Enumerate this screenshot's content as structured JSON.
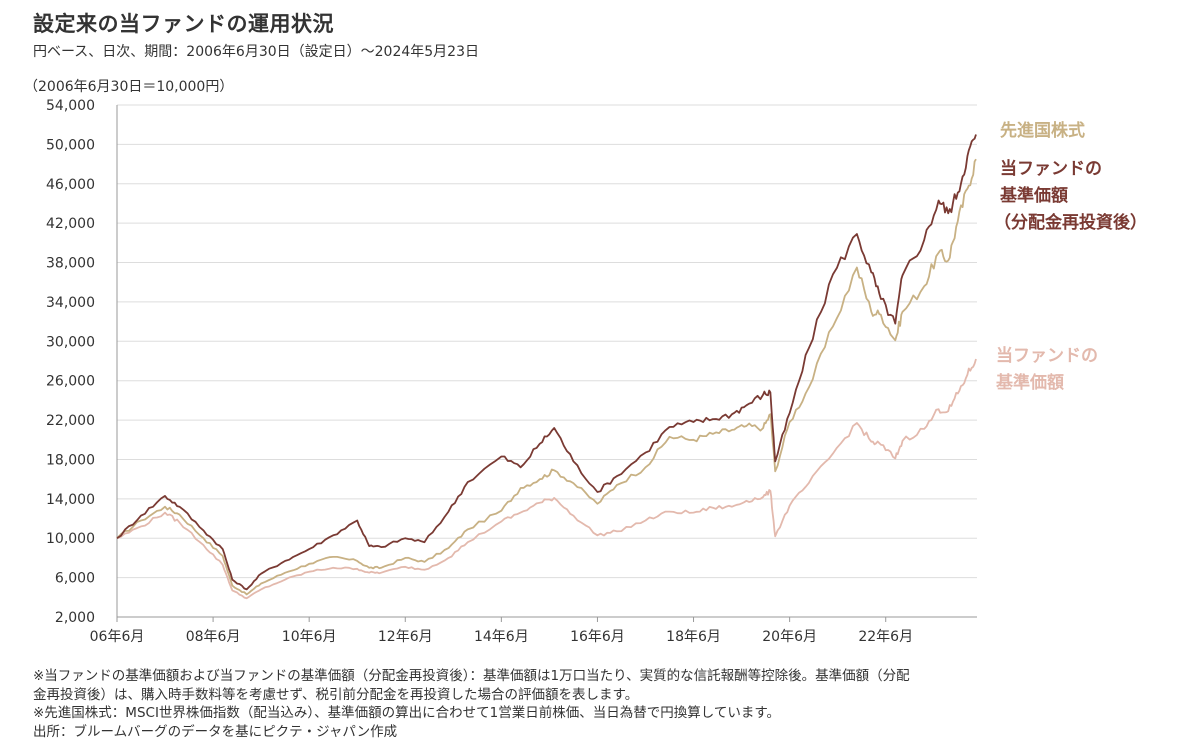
{
  "header": {
    "title": "設定来の当ファンドの運用状況",
    "subtitle": "円ベース、日次、期間：2006年6月30日（設定日）～2024年5月23日",
    "unit_label": "（2006年6月30日＝10,000円）"
  },
  "chart_data": {
    "type": "line",
    "title": "設定来の当ファンドの運用状況",
    "ylim": [
      2000,
      54000
    ],
    "xlim": [
      2006.5,
      2024.4
    ],
    "y_ticks": [
      2000,
      6000,
      10000,
      14000,
      18000,
      22000,
      26000,
      30000,
      34000,
      38000,
      42000,
      46000,
      50000,
      54000
    ],
    "y_tick_labels": [
      "2,000",
      "6,000",
      "10,000",
      "14,000",
      "18,000",
      "22,000",
      "26,000",
      "30,000",
      "34,000",
      "38,000",
      "42,000",
      "46,000",
      "50,000",
      "54,000"
    ],
    "x_ticks": [
      2006.5,
      2008.5,
      2010.5,
      2012.5,
      2014.5,
      2016.5,
      2018.5,
      2020.5,
      2022.5
    ],
    "x_tick_labels": [
      "06年6月",
      "08年6月",
      "10年6月",
      "12年6月",
      "14年6月",
      "16年6月",
      "18年6月",
      "20年6月",
      "22年6月"
    ],
    "grid": "horizontal",
    "legend": "right",
    "series": [
      {
        "name": "先進国株式",
        "color": "#c8b184",
        "x": [
          2006.5,
          2007.0,
          2007.5,
          2007.8,
          2008.3,
          2008.7,
          2008.9,
          2009.2,
          2009.5,
          2010.0,
          2010.5,
          2011.0,
          2011.5,
          2011.75,
          2012.0,
          2012.5,
          2012.9,
          2013.4,
          2013.8,
          2014.5,
          2014.9,
          2015.3,
          2015.6,
          2016.0,
          2016.5,
          2016.9,
          2017.5,
          2018.0,
          2018.5,
          2018.9,
          2019.3,
          2019.6,
          2019.95,
          2020.1,
          2020.2,
          2020.5,
          2020.9,
          2021.4,
          2021.9,
          2022.2,
          2022.4,
          2022.7,
          2022.85,
          2023.3,
          2023.6,
          2023.8,
          2024.0,
          2024.2,
          2024.38
        ],
        "y": [
          10000,
          11800,
          13200,
          12400,
          10000,
          8200,
          5200,
          4300,
          5400,
          6500,
          7400,
          8100,
          7700,
          7000,
          7000,
          8000,
          7600,
          9000,
          10900,
          12800,
          15100,
          16000,
          16900,
          15600,
          13500,
          15400,
          17200,
          20300,
          20000,
          20600,
          21000,
          21400,
          21200,
          22600,
          16800,
          21800,
          25300,
          31500,
          37500,
          33000,
          32700,
          30100,
          33000,
          35600,
          39000,
          38200,
          42200,
          45500,
          48500
        ]
      },
      {
        "name": "当ファンドの基準価額（分配金再投資後）",
        "color": "#7a3a33",
        "x": [
          2006.5,
          2007.0,
          2007.5,
          2007.8,
          2008.3,
          2008.7,
          2008.9,
          2009.2,
          2009.5,
          2010.0,
          2010.5,
          2011.0,
          2011.5,
          2011.75,
          2012.0,
          2012.5,
          2012.9,
          2013.4,
          2013.8,
          2014.5,
          2014.9,
          2015.3,
          2015.6,
          2016.0,
          2016.5,
          2016.9,
          2017.5,
          2018.0,
          2018.5,
          2018.9,
          2019.3,
          2019.6,
          2019.95,
          2020.1,
          2020.2,
          2020.5,
          2020.9,
          2021.4,
          2021.9,
          2022.2,
          2022.4,
          2022.7,
          2022.85,
          2023.3,
          2023.6,
          2023.8,
          2024.0,
          2024.2,
          2024.38
        ],
        "y": [
          10000,
          12300,
          14300,
          13200,
          10800,
          8900,
          5800,
          4800,
          6400,
          7700,
          8900,
          10300,
          11800,
          9200,
          9100,
          10000,
          9600,
          12700,
          15700,
          18300,
          17200,
          19600,
          21200,
          17800,
          14700,
          16300,
          18700,
          21300,
          21800,
          22100,
          22600,
          23500,
          24600,
          24800,
          17800,
          22700,
          29300,
          36800,
          40900,
          37000,
          34300,
          31800,
          36700,
          40300,
          44300,
          43000,
          45100,
          48800,
          51000
        ]
      },
      {
        "name": "当ファンドの基準価額",
        "color": "#e3b9ad",
        "x": [
          2006.5,
          2007.0,
          2007.5,
          2007.8,
          2008.3,
          2008.7,
          2008.9,
          2009.2,
          2009.5,
          2010.0,
          2010.5,
          2011.0,
          2011.5,
          2011.75,
          2012.0,
          2012.5,
          2012.9,
          2013.4,
          2013.8,
          2014.5,
          2014.9,
          2015.3,
          2015.6,
          2016.0,
          2016.5,
          2016.9,
          2017.5,
          2018.0,
          2018.5,
          2018.9,
          2019.3,
          2019.6,
          2019.95,
          2020.1,
          2020.2,
          2020.5,
          2020.9,
          2021.4,
          2021.9,
          2022.2,
          2022.4,
          2022.7,
          2022.85,
          2023.3,
          2023.6,
          2023.8,
          2024.0,
          2024.2,
          2024.38
        ],
        "y": [
          10000,
          11200,
          12600,
          11600,
          9300,
          7300,
          4700,
          3900,
          4800,
          5800,
          6600,
          7000,
          6900,
          6500,
          6500,
          7100,
          6800,
          8000,
          9600,
          11700,
          12600,
          13600,
          14100,
          12300,
          10300,
          10700,
          11800,
          12700,
          12600,
          13100,
          13200,
          13800,
          14200,
          14800,
          10200,
          13300,
          15600,
          18600,
          21700,
          19800,
          19500,
          18100,
          19900,
          21100,
          23100,
          22900,
          24700,
          26600,
          28200
        ]
      }
    ]
  },
  "legend": {
    "world_stocks": "先進国株式",
    "fund_reinvested_1": "当ファンドの",
    "fund_reinvested_2": "基準価額",
    "fund_reinvested_3": "（分配金再投資後）",
    "fund_nav_1": "当ファンドの",
    "fund_nav_2": "基準価額"
  },
  "notes": {
    "line1": "※当ファンドの基準価額および当ファンドの基準価額（分配金再投資後）：基準価額は1万口当たり、実質的な信託報酬等控除後。基準価額（分配",
    "line2": "金再投資後）は、購入時手数料等を考慮せず、税引前分配金を再投資した場合の評価額を表します。",
    "line3": "※先進国株式：MSCI世界株価指数（配当込み）、基準価額の算出に合わせて1営業日前株価、当日為替で円換算しています。",
    "line4": "出所：ブルームバーグのデータを基にピクテ・ジャパン作成"
  }
}
